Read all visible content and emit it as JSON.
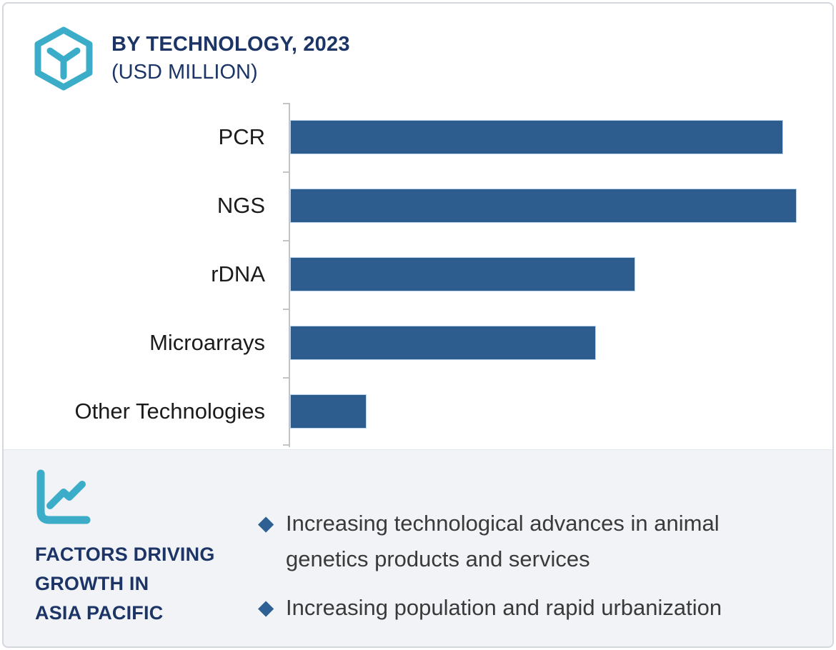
{
  "header": {
    "title": "BY TECHNOLOGY, 2023",
    "subtitle": "(USD MILLION)"
  },
  "chart_data": {
    "type": "bar",
    "orientation": "horizontal",
    "title": "BY TECHNOLOGY, 2023 (USD MILLION)",
    "categories": [
      "PCR",
      "NGS",
      "rDNA",
      "Microarrays",
      "Other Technologies"
    ],
    "values": [
      97.3,
      100,
      68.1,
      60.4,
      15.1
    ],
    "values_unit": "relative bar length, longest bar (NGS) = 100; no numeric axis shown",
    "xlabel": "",
    "ylabel": "",
    "grid": false,
    "legend": false,
    "bar_color": "#2C5D8E",
    "axis_color": "#C2C4C7"
  },
  "panel": {
    "title": "FACTORS DRIVING\nGROWTH IN\nASIA PACIFIC",
    "bullets": [
      "Increasing technological advances in animal genetics products and services",
      "Increasing population and rapid urbanization"
    ],
    "background_color": "#F1F3F7"
  },
  "icons": {
    "header_icon": "hexagon-cube-icon",
    "panel_icon": "line-chart-icon",
    "bullet_icon": "diamond-bullet-icon",
    "bullet_glyph": "◆",
    "accent_color": "#3BADC9"
  },
  "colors": {
    "navy_text": "#1C3566",
    "bar_blue": "#2C5D8E",
    "body_text": "#3A3A3A",
    "page_border": "#D4D8DE"
  }
}
